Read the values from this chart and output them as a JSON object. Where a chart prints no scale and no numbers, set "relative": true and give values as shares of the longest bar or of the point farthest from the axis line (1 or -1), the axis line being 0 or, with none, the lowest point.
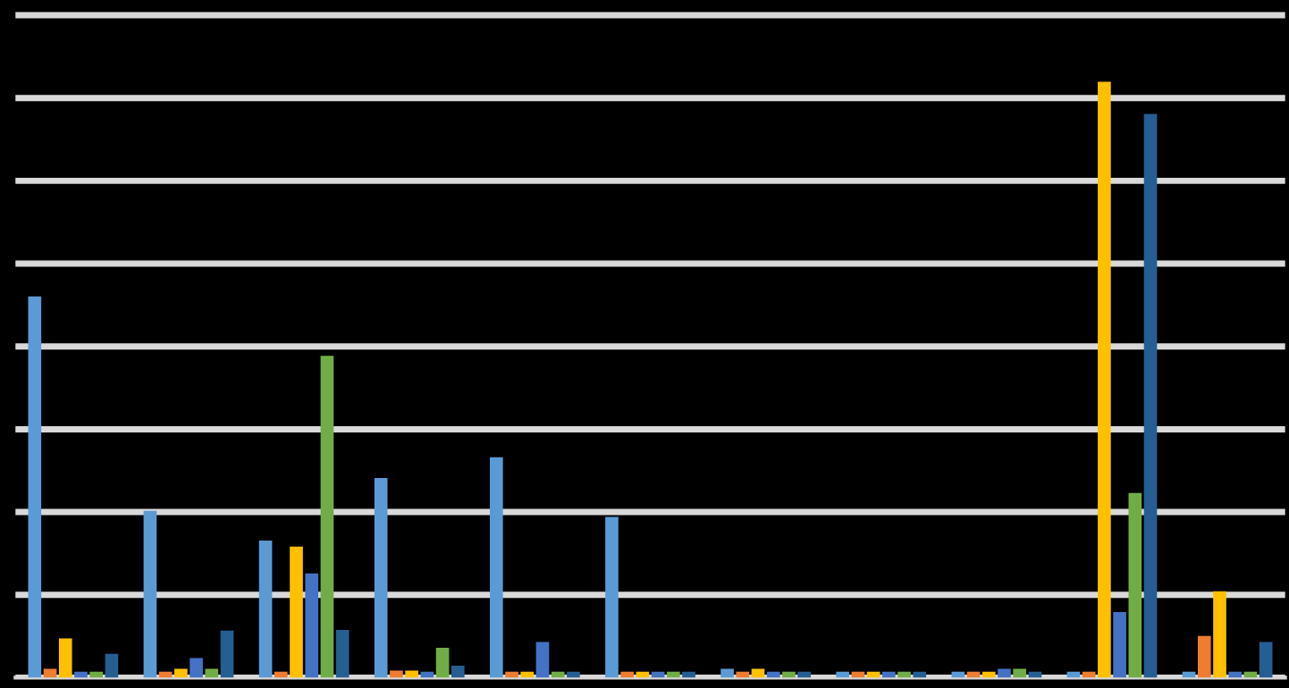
{
  "chart_data": {
    "type": "bar",
    "relative": true,
    "grid": "y",
    "tick_labels": false,
    "categories": [
      null,
      null,
      null,
      null,
      null,
      null,
      null,
      null,
      null,
      null,
      null
    ],
    "series": [
      {
        "color": "#5b9bd5",
        "values": [
          0.64,
          0.28,
          0.23,
          0.335,
          0.37,
          0.27,
          0.015,
          0.01,
          0.01,
          0.01,
          0.01
        ]
      },
      {
        "color": "#ed7d31",
        "values": [
          0.015,
          0.01,
          0.01,
          0.012,
          0.01,
          0.01,
          0.01,
          0.01,
          0.01,
          0.01,
          0.07
        ]
      },
      {
        "color": "#ffc000",
        "values": [
          0.066,
          0.015,
          0.22,
          0.012,
          0.01,
          0.01,
          0.015,
          0.01,
          0.01,
          1.0,
          0.145
        ]
      },
      {
        "color": "#4472c4",
        "values": [
          0.01,
          0.033,
          0.175,
          0.01,
          0.06,
          0.01,
          0.01,
          0.01,
          0.015,
          0.11,
          0.01
        ]
      },
      {
        "color": "#70ad47",
        "values": [
          0.01,
          0.015,
          0.54,
          0.05,
          0.01,
          0.01,
          0.01,
          0.01,
          0.015,
          0.31,
          0.01
        ]
      },
      {
        "color": "#255e91",
        "values": [
          0.04,
          0.079,
          0.08,
          0.02,
          0.01,
          0.01,
          0.01,
          0.01,
          0.01,
          0.946,
          0.06
        ]
      }
    ]
  }
}
